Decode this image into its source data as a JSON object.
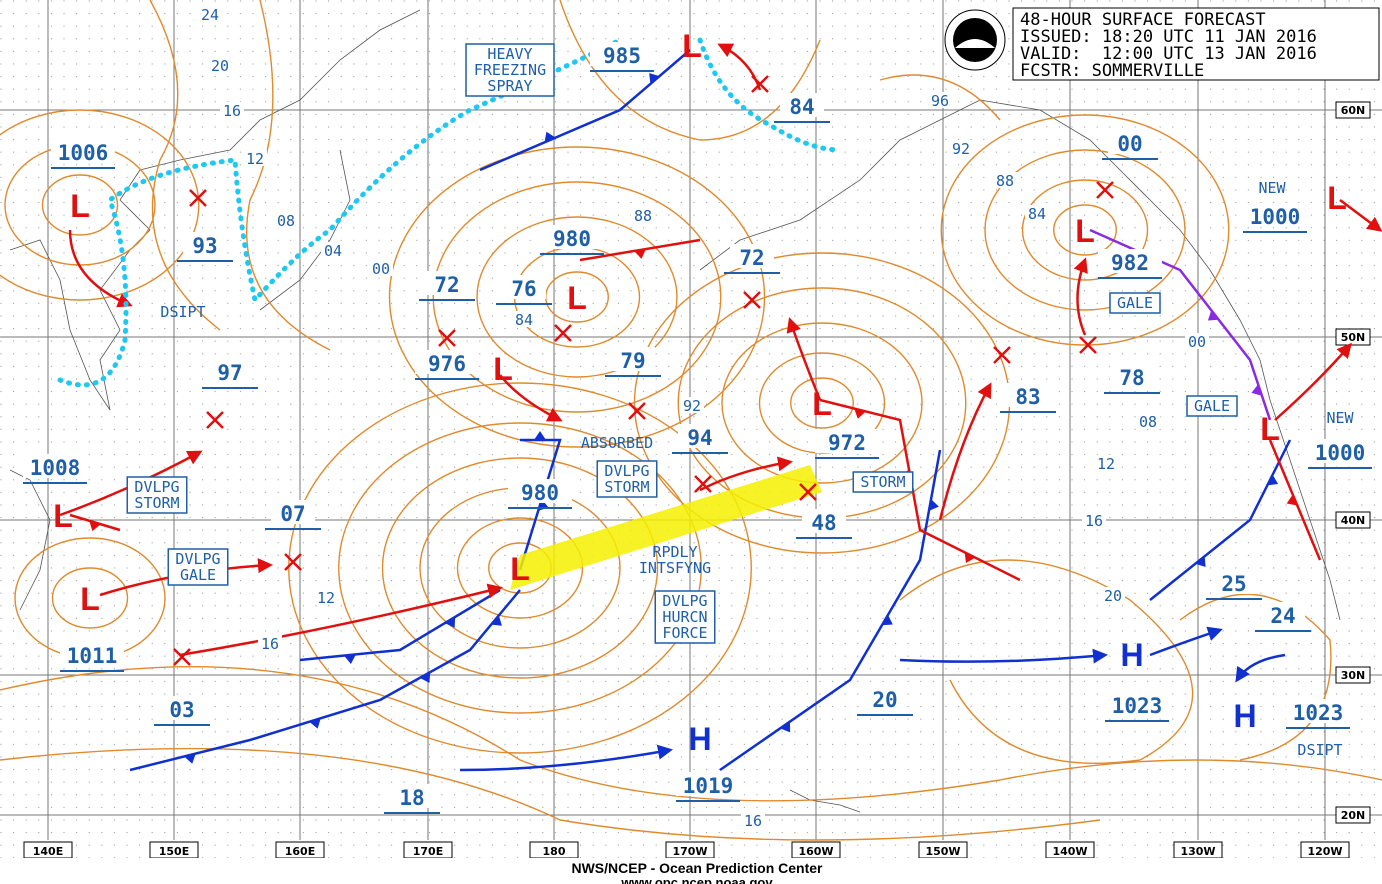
{
  "header": {
    "title": "48-HOUR SURFACE FORECAST",
    "issued": "ISSUED: 18:20 UTC 11 JAN 2016",
    "valid": "VALID:  12:00 UTC 13 JAN 2016",
    "forecaster": "FCSTR: SOMMERVILLE"
  },
  "footer": {
    "credit": "NWS/NCEP - Ocean Prediction Center",
    "url": "www.opc.ncep.noaa.gov"
  },
  "longitudes": [
    "140E",
    "150E",
    "160E",
    "170E",
    "180",
    "170W",
    "160W",
    "150W",
    "140W",
    "130W",
    "120W"
  ],
  "latitudes": [
    "60N",
    "50N",
    "40N",
    "30N",
    "20N"
  ],
  "centers": [
    {
      "symbol": "L",
      "pressure": "1006"
    },
    {
      "symbol": "L",
      "pressure": "985"
    },
    {
      "symbol": "L",
      "pressure": "982"
    },
    {
      "symbol": "L",
      "pressure": "980"
    },
    {
      "symbol": "L",
      "pressure": "976"
    },
    {
      "symbol": "L",
      "pressure": "972"
    },
    {
      "symbol": "L",
      "pressure": "1008"
    },
    {
      "symbol": "L",
      "pressure": "1011"
    },
    {
      "symbol": "L",
      "pressure": "980"
    },
    {
      "symbol": "L",
      "pressure": "1000"
    },
    {
      "symbol": "L",
      "pressure": "1000"
    },
    {
      "symbol": "H",
      "pressure": "1019"
    },
    {
      "symbol": "H",
      "pressure": "1023"
    },
    {
      "symbol": "H",
      "pressure": "1023"
    }
  ],
  "forecast_points": [
    "93",
    "97",
    "07",
    "03",
    "72",
    "76",
    "79",
    "94",
    "72",
    "84",
    "00",
    "78",
    "83",
    "48",
    "20",
    "18",
    "25",
    "24"
  ],
  "isobar_labels": [
    "24",
    "20",
    "16",
    "12",
    "08",
    "04",
    "00",
    "84",
    "88",
    "92",
    "96",
    "92",
    "88",
    "84",
    "00",
    "08",
    "12",
    "16",
    "20",
    "12",
    "16",
    "16"
  ],
  "boxed_labels": [
    [
      "HEAVY",
      "FREEZING",
      "SPRAY"
    ],
    [
      "DVLPG",
      "STORM"
    ],
    [
      "DVLPG",
      "GALE"
    ],
    [
      "DVLPG",
      "STORM"
    ],
    [
      "DVLPG",
      "HURCN",
      "FORCE"
    ],
    [
      "STORM"
    ],
    [
      "GALE"
    ],
    [
      "GALE"
    ]
  ],
  "plain_labels": [
    [
      "DSIPT"
    ],
    [
      "ABSORBED"
    ],
    [
      "RPDLY",
      "INTSFYNG"
    ],
    [
      "NEW"
    ],
    [
      "NEW"
    ],
    [
      "DSIPT"
    ]
  ]
}
